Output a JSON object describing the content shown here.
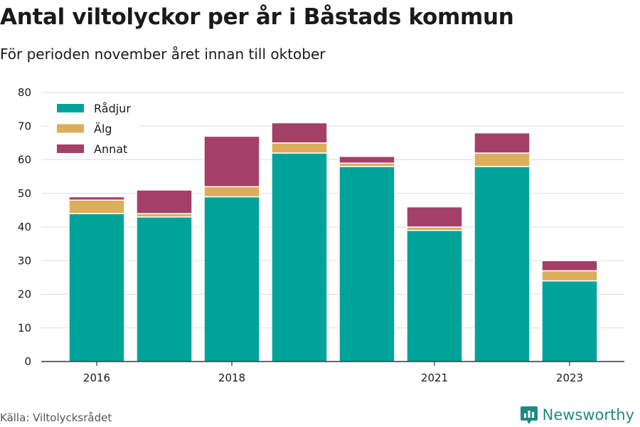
{
  "title": "Antal viltolyckor per år i Båstads kommun",
  "subtitle": "För perioden november året innan till oktober",
  "source": "Källa: Viltolycksrådet",
  "brand": {
    "name": "Newsworthy",
    "icon": "newsworthy-logo-icon",
    "color": "#1f8a85"
  },
  "chart_data": {
    "type": "bar",
    "stacked": true,
    "title": "Antal viltolyckor per år i Båstads kommun",
    "subtitle": "För perioden november året innan till oktober",
    "categories": [
      "2016",
      "2017",
      "2018",
      "2019",
      "2020",
      "2021",
      "2022",
      "2023"
    ],
    "x_tick_labels": [
      "2016",
      "",
      "2018",
      "",
      "",
      "2021",
      "",
      "2023"
    ],
    "series": [
      {
        "name": "Rådjur",
        "color": "#00a39a",
        "values": [
          44,
          43,
          49,
          62,
          58,
          39,
          58,
          24
        ]
      },
      {
        "name": "Älg",
        "color": "#dbae5a",
        "values": [
          4,
          1,
          3,
          3,
          1,
          1,
          4,
          3
        ]
      },
      {
        "name": "Annat",
        "color": "#a43f67",
        "values": [
          1,
          7,
          15,
          6,
          2,
          6,
          6,
          3
        ]
      }
    ],
    "ylim": [
      0,
      80
    ],
    "yticks": [
      0,
      10,
      20,
      30,
      40,
      50,
      60,
      70,
      80
    ],
    "grid": true,
    "legend_position": "top-left"
  }
}
